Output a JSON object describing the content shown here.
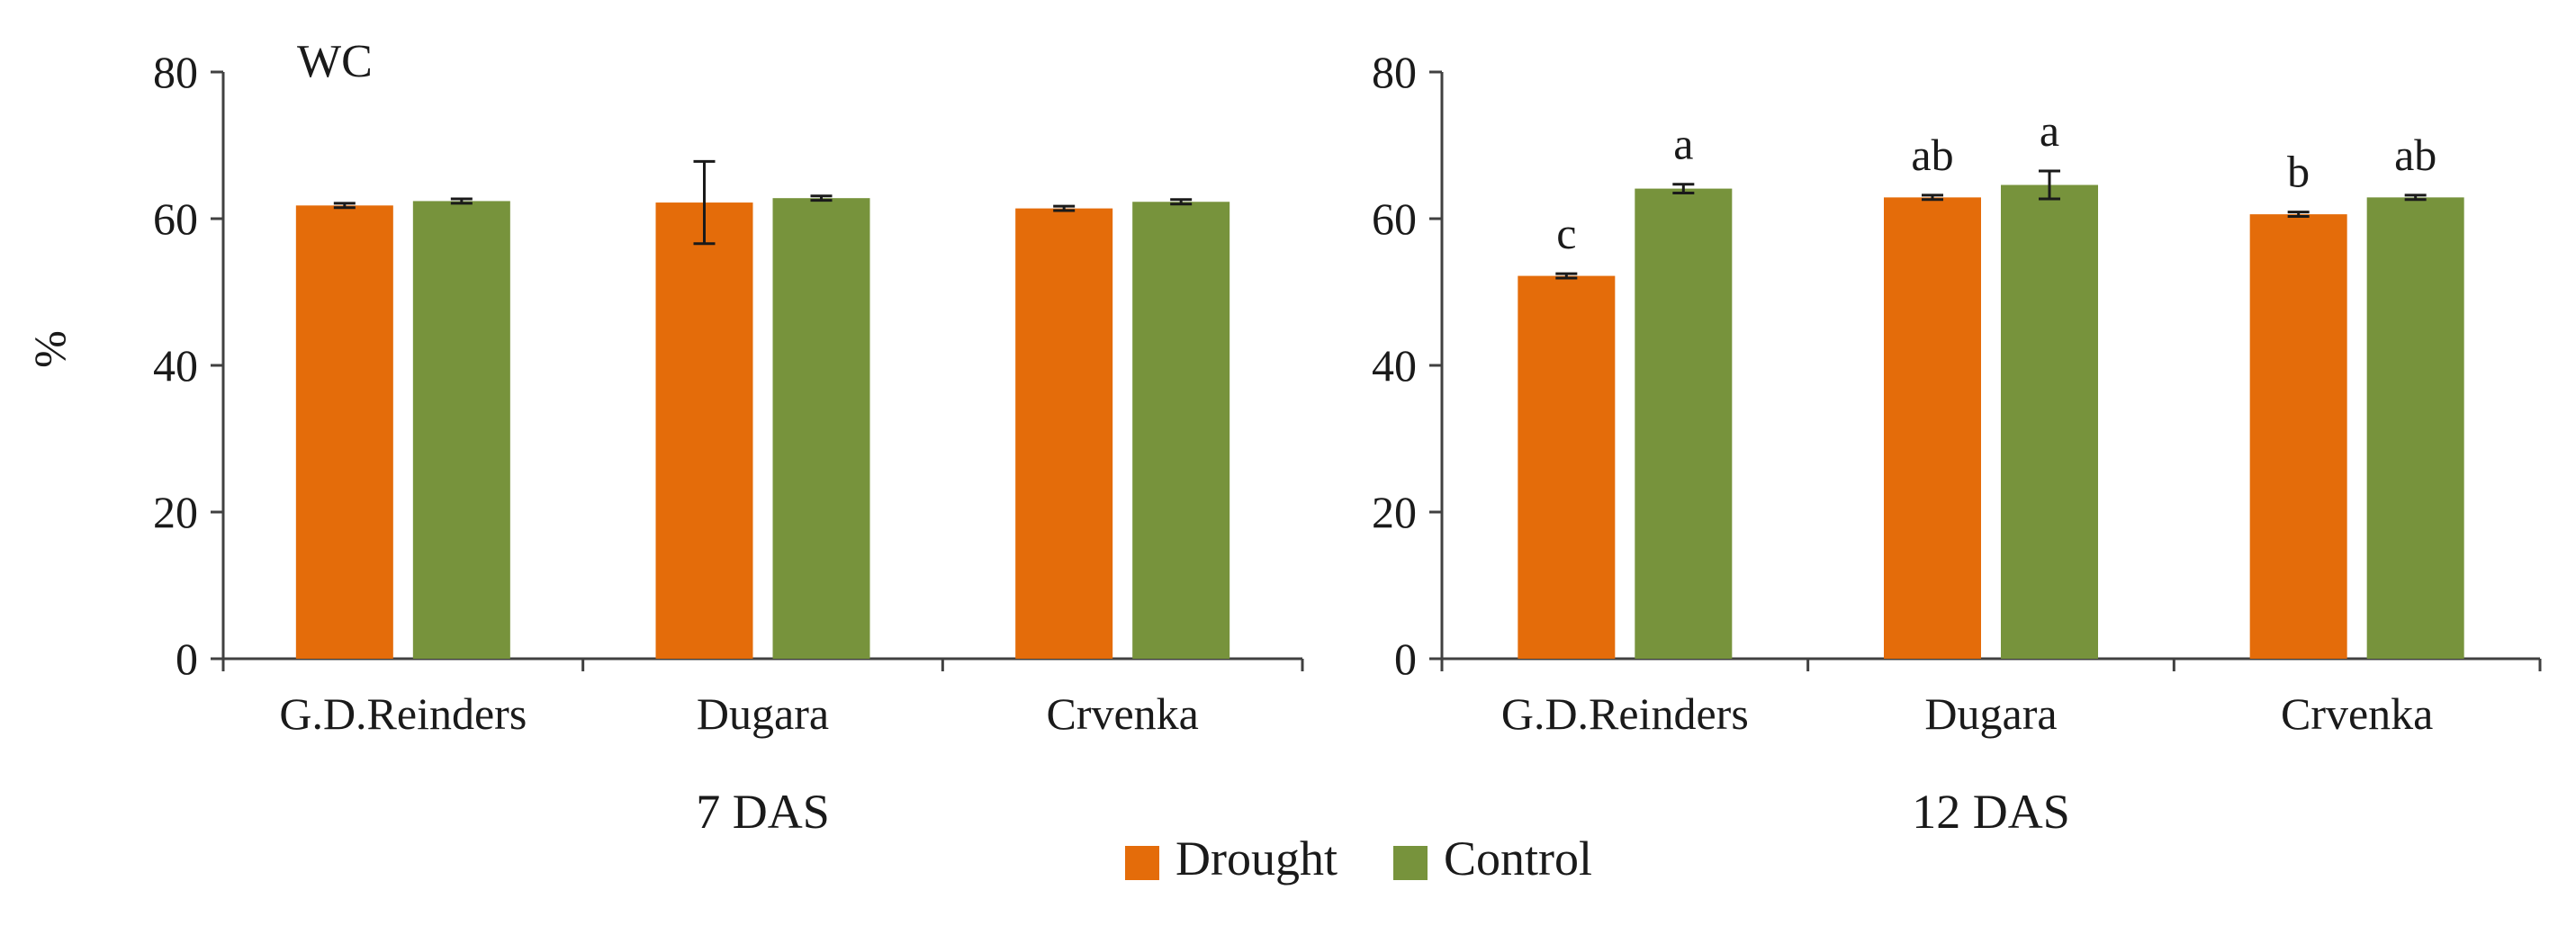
{
  "chart_data": {
    "type": "bar",
    "title": "WC",
    "ylabel": "%",
    "ylim": [
      0,
      80
    ],
    "yticks": [
      0,
      20,
      40,
      60,
      80
    ],
    "legend_position": "bottom-center",
    "grid": false,
    "series_colors": {
      "Drought": "#E46C0A",
      "Control": "#77933C"
    },
    "legend": [
      {
        "name": "Drought",
        "color": "#E46C0A"
      },
      {
        "name": "Control",
        "color": "#77933C"
      }
    ],
    "panels": [
      {
        "group_label": "7 DAS",
        "categories": [
          "G.D.Reinders",
          "Dugara",
          "Crvenka"
        ],
        "series": [
          {
            "name": "Drought",
            "values": [
              61.8,
              62.2,
              61.4
            ],
            "errors": [
              0.3,
              5.6,
              0.3
            ],
            "sig": [
              "",
              "",
              ""
            ]
          },
          {
            "name": "Control",
            "values": [
              62.4,
              62.8,
              62.3
            ],
            "errors": [
              0.3,
              0.3,
              0.3
            ],
            "sig": [
              "",
              "",
              ""
            ]
          }
        ]
      },
      {
        "group_label": "12 DAS",
        "categories": [
          "G.D.Reinders",
          "Dugara",
          "Crvenka"
        ],
        "series": [
          {
            "name": "Drought",
            "values": [
              52.2,
              62.9,
              60.6
            ],
            "errors": [
              0.3,
              0.3,
              0.3
            ],
            "sig": [
              "c",
              "ab",
              "b"
            ]
          },
          {
            "name": "Control",
            "values": [
              64.1,
              64.6,
              62.9
            ],
            "errors": [
              0.6,
              1.9,
              0.3
            ],
            "sig": [
              "a",
              "a",
              "ab"
            ]
          }
        ]
      }
    ]
  }
}
